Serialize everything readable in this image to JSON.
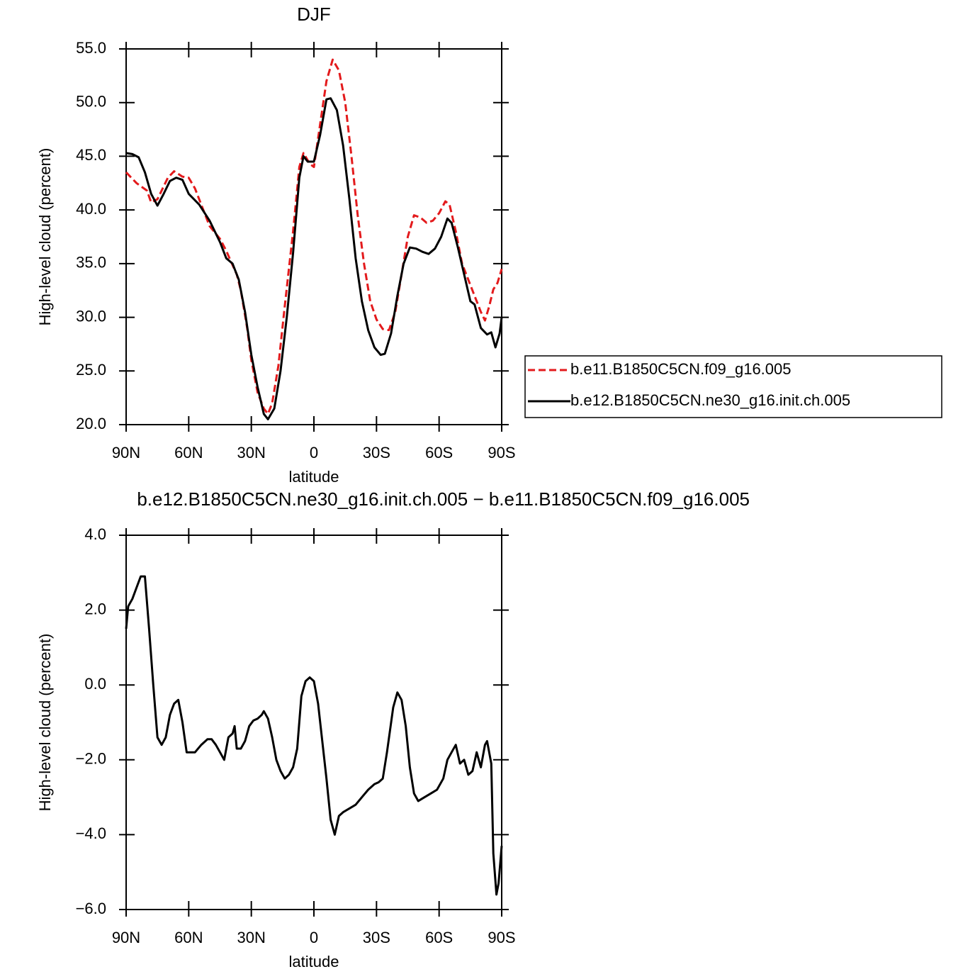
{
  "chart_data": [
    {
      "type": "line",
      "title": "DJF",
      "xlabel": "latitude",
      "ylabel": "High-level cloud (percent)",
      "xlim": [
        90,
        -90
      ],
      "xticks": [
        {
          "value": 90,
          "label": "90N"
        },
        {
          "value": 60,
          "label": "60N"
        },
        {
          "value": 30,
          "label": "30N"
        },
        0,
        {
          "value": -30,
          "label": "30S"
        },
        {
          "value": -60,
          "label": "60S"
        },
        {
          "value": -90,
          "label": "90S"
        }
      ],
      "ylim": [
        20,
        55
      ],
      "yticks": [
        {
          "value": 20,
          "label": "20.0"
        },
        {
          "value": 25,
          "label": "25.0"
        },
        {
          "value": 30,
          "label": "30.0"
        },
        {
          "value": 35,
          "label": "35.0"
        },
        {
          "value": 40,
          "label": "40.0"
        },
        {
          "value": 45,
          "label": "45.0"
        },
        {
          "value": 50,
          "label": "50.0"
        },
        {
          "value": 55,
          "label": "55.0"
        }
      ],
      "legend": "right",
      "series": [
        {
          "name": "b.e11.B1850C5CN.f09_g16.005",
          "color": "#e31a1c",
          "dash": true,
          "x": [
            90,
            85,
            80,
            78,
            75,
            70,
            67,
            63,
            60,
            57,
            53,
            50,
            45,
            42,
            40,
            37,
            35,
            32,
            30,
            27,
            24,
            22,
            20,
            17,
            14,
            10,
            7,
            5,
            2,
            0,
            -3,
            -6,
            -9,
            -12,
            -15,
            -18,
            -21,
            -24,
            -27,
            -30,
            -33,
            -36,
            -39,
            -42,
            -45,
            -48,
            -51,
            -54,
            -57,
            -60,
            -63,
            -65,
            -68,
            -71,
            -74,
            -77,
            -80,
            -82,
            -84,
            -86,
            -88,
            -90
          ],
          "values": [
            43.5,
            42.5,
            41.8,
            40.7,
            41.0,
            43.0,
            43.6,
            43.1,
            43.0,
            42.0,
            40.0,
            38.5,
            37.3,
            36.2,
            35.3,
            34.0,
            32.5,
            29.0,
            26.0,
            23.0,
            21.5,
            21.0,
            22.0,
            25.5,
            31.0,
            38.0,
            44.0,
            45.3,
            44.3,
            44.0,
            48.0,
            52.0,
            54.0,
            53.0,
            50.0,
            45.0,
            39.5,
            35.0,
            31.5,
            29.8,
            28.9,
            28.8,
            30.5,
            34.0,
            37.5,
            39.5,
            39.3,
            38.8,
            39.0,
            39.7,
            40.8,
            40.5,
            38.0,
            35.0,
            33.5,
            32.0,
            30.5,
            29.7,
            31.0,
            32.6,
            33.2,
            34.5
          ]
        },
        {
          "name": "b.e12.B1850C5CN.ne30_g16.init.ch.005",
          "color": "#000000",
          "dash": false,
          "x": [
            90,
            87,
            84,
            81,
            78,
            75,
            72,
            69,
            66,
            63,
            60,
            55,
            50,
            45,
            42,
            39,
            36,
            33,
            30,
            27,
            24,
            22,
            19,
            16,
            13,
            10,
            7,
            5,
            3,
            0,
            -3,
            -6,
            -8,
            -11,
            -14,
            -17,
            -20,
            -23,
            -26,
            -29,
            -32,
            -34,
            -37,
            -40,
            -43,
            -46,
            -49,
            -52,
            -55,
            -58,
            -61,
            -64,
            -66,
            -69,
            -72,
            -75,
            -77,
            -80,
            -83,
            -85,
            -87,
            -89,
            -90
          ],
          "values": [
            45.3,
            45.2,
            44.9,
            43.5,
            41.5,
            40.4,
            41.5,
            42.7,
            43.0,
            42.8,
            41.5,
            40.5,
            39.0,
            37.0,
            35.5,
            35.0,
            33.5,
            30.5,
            26.5,
            23.5,
            21.0,
            20.5,
            21.5,
            25.0,
            30.0,
            36.0,
            43.0,
            45.0,
            44.5,
            44.5,
            47.0,
            50.3,
            50.4,
            49.3,
            46.0,
            41.0,
            35.5,
            31.5,
            28.8,
            27.2,
            26.5,
            26.6,
            28.5,
            32.0,
            35.0,
            36.5,
            36.4,
            36.1,
            35.9,
            36.4,
            37.5,
            39.2,
            38.8,
            36.5,
            34.0,
            31.5,
            31.2,
            29.0,
            28.4,
            28.6,
            27.2,
            28.5,
            30.0
          ]
        }
      ]
    },
    {
      "type": "line",
      "title": "b.e12.B1850C5CN.ne30_g16.init.ch.005 − b.e11.B1850C5CN.f09_g16.005",
      "xlabel": "latitude",
      "ylabel": "High-level cloud (percent)",
      "xlim": [
        90,
        -90
      ],
      "xticks": [
        {
          "value": 90,
          "label": "90N"
        },
        {
          "value": 60,
          "label": "60N"
        },
        {
          "value": 30,
          "label": "30N"
        },
        0,
        {
          "value": -30,
          "label": "30S"
        },
        {
          "value": -60,
          "label": "60S"
        },
        {
          "value": -90,
          "label": "90S"
        }
      ],
      "ylim": [
        -6,
        4
      ],
      "yticks": [
        {
          "value": -6,
          "label": "−6.0"
        },
        {
          "value": -4,
          "label": "−4.0"
        },
        {
          "value": -2,
          "label": "−2.0"
        },
        {
          "value": 0,
          "label": "0.0"
        },
        {
          "value": 2,
          "label": "2.0"
        },
        {
          "value": 4,
          "label": "4.0"
        }
      ],
      "series": [
        {
          "color": "#000000",
          "dash": false,
          "x": [
            90,
            89,
            87,
            85,
            83,
            81,
            79,
            77,
            75,
            73,
            71,
            69,
            67,
            65,
            63,
            61,
            59,
            57,
            54,
            51,
            49,
            47,
            45,
            43,
            41,
            39,
            38,
            37,
            35,
            33,
            31,
            29,
            27,
            25,
            24,
            22,
            20,
            18,
            16,
            14,
            12,
            10,
            8,
            6,
            4,
            2,
            0,
            -2,
            -4,
            -6,
            -8,
            -10,
            -12,
            -14,
            -17,
            -20,
            -23,
            -26,
            -29,
            -31,
            -33,
            -35,
            -38,
            -40,
            -42,
            -44,
            -46,
            -48,
            -50,
            -53,
            -56,
            -59,
            -62,
            -64,
            -66,
            -68,
            -70,
            -72,
            -74,
            -76,
            -78,
            -80,
            -82,
            -83,
            -85,
            -86,
            -87.5,
            -88.5,
            -90
          ],
          "values": [
            1.5,
            2.1,
            2.3,
            2.6,
            2.9,
            2.9,
            1.5,
            0.0,
            -1.4,
            -1.6,
            -1.4,
            -0.8,
            -0.5,
            -0.4,
            -1.0,
            -1.8,
            -1.8,
            -1.8,
            -1.6,
            -1.45,
            -1.45,
            -1.6,
            -1.8,
            -2.0,
            -1.4,
            -1.3,
            -1.1,
            -1.7,
            -1.7,
            -1.5,
            -1.1,
            -0.95,
            -0.9,
            -0.8,
            -0.7,
            -0.9,
            -1.4,
            -2.0,
            -2.3,
            -2.5,
            -2.4,
            -2.2,
            -1.7,
            -0.3,
            0.1,
            0.2,
            0.1,
            -0.5,
            -1.5,
            -2.5,
            -3.6,
            -4.0,
            -3.5,
            -3.4,
            -3.3,
            -3.2,
            -3.0,
            -2.8,
            -2.65,
            -2.6,
            -2.5,
            -1.8,
            -0.6,
            -0.2,
            -0.4,
            -1.1,
            -2.2,
            -2.9,
            -3.1,
            -3.0,
            -2.9,
            -2.8,
            -2.5,
            -2.0,
            -1.8,
            -1.6,
            -2.1,
            -2.0,
            -2.4,
            -2.3,
            -1.8,
            -2.2,
            -1.6,
            -1.5,
            -2.1,
            -4.5,
            -5.6,
            -5.3,
            -4.3
          ]
        }
      ]
    }
  ]
}
